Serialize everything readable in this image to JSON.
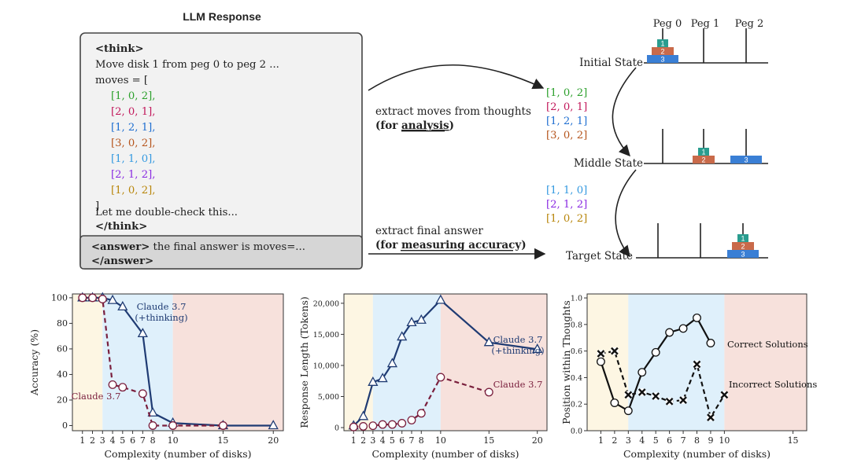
{
  "response_panel": {
    "title": "LLM Response",
    "think_open": "<think>",
    "line1": "Move disk 1 from peg 0 to peg 2 ...",
    "moves_open": "moves = [",
    "moves": [
      "[1, 0, 2],",
      "[2, 0, 1],",
      "[1, 2, 1],",
      "[3, 0, 2],",
      "[1, 1, 0],",
      "[2, 1, 2],",
      "[1, 0, 2],"
    ],
    "moves_close": "]",
    "line_check": "Let me double-check this...",
    "think_close": "</think>",
    "answer_tag": "<answer>",
    "answer_text": " the final answer is moves=...",
    "answer_close": "</answer>"
  },
  "colors": {
    "moves": [
      "#2ca02c",
      "#c2185b",
      "#1f6fd1",
      "#b5541c",
      "#3399e0",
      "#8a2be2",
      "#b8860b"
    ],
    "disk1": "#2a9d8f",
    "disk2": "#c96a4a",
    "disk3": "#3a7fd5",
    "claude_thinking": "#1f3b73",
    "claude": "#7a1f3d",
    "region_easy": "#fdf6e3",
    "region_medium": "#dff0fb",
    "region_hard": "#f7e1dc"
  },
  "arrow_labels": {
    "thoughts_line1": "extract moves  from thoughts",
    "thoughts_line2a": "(for ",
    "thoughts_line2b": "analysis",
    "thoughts_line2c": ")",
    "answer_line1": "extract final answer",
    "answer_line2a": "(for ",
    "answer_line2b": "measuring accuracy",
    "answer_line2c": ")"
  },
  "hanoi": {
    "pegs": [
      "Peg 0",
      "Peg 1",
      "Peg 2"
    ],
    "states": [
      "Initial State",
      "Middle State",
      "Target State"
    ],
    "first_moves": [
      "[1, 0, 2]",
      "[2, 0, 1]",
      "[1, 2, 1]",
      "[3, 0, 2]"
    ],
    "second_moves": [
      "[1, 1, 0]",
      "[2, 1, 2]",
      "[1, 0, 2]"
    ],
    "disk_labels": [
      "1",
      "2",
      "3"
    ]
  },
  "chart_data": [
    {
      "type": "line",
      "xlabel": "Complexity (number of disks)",
      "ylabel": "Accuracy (%)",
      "xlim": [
        0,
        21
      ],
      "ylim": [
        -4,
        103
      ],
      "xticks": [
        1,
        2,
        3,
        4,
        5,
        6,
        7,
        8,
        10,
        15,
        20
      ],
      "yticks": [
        0,
        20,
        40,
        60,
        80,
        100
      ],
      "regions": [
        [
          0,
          3
        ],
        [
          3,
          10
        ],
        [
          10,
          21
        ]
      ],
      "series": [
        {
          "name": "Claude 3.7 (+thinking)",
          "label_lines": [
            "Claude 3.7",
            "(+thinking)"
          ],
          "marker": "triangle",
          "style": "solid",
          "x": [
            1,
            2,
            3,
            4,
            5,
            7,
            8,
            10,
            15,
            20
          ],
          "y": [
            100,
            100,
            100,
            98,
            93,
            72,
            10,
            2,
            0,
            0
          ]
        },
        {
          "name": "Claude 3.7",
          "label_lines": [
            "Claude 3.7"
          ],
          "marker": "circle",
          "style": "dashed",
          "x": [
            1,
            2,
            3,
            4,
            5,
            7,
            8,
            10,
            15
          ],
          "y": [
            100,
            100,
            99,
            32,
            30,
            25,
            0,
            0,
            0
          ]
        }
      ]
    },
    {
      "type": "line",
      "xlabel": "Complexity (number of disks)",
      "ylabel": "Response Length (Tokens)",
      "xlim": [
        0,
        21
      ],
      "ylim": [
        -500,
        21500
      ],
      "xticks": [
        1,
        2,
        3,
        4,
        5,
        6,
        7,
        8,
        10,
        15,
        20
      ],
      "yticks": [
        0,
        5000,
        10000,
        15000,
        20000
      ],
      "ytick_labels": [
        "0",
        "5,000",
        "10,000",
        "15,000",
        "20,000"
      ],
      "regions": [
        [
          0,
          3
        ],
        [
          3,
          10
        ],
        [
          10,
          21
        ]
      ],
      "series": [
        {
          "name": "Claude 3.7 (+thinking)",
          "label_lines": [
            "Claude 3.7",
            "(+thinking)"
          ],
          "marker": "triangle",
          "style": "solid",
          "x": [
            1,
            2,
            3,
            4,
            5,
            6,
            7,
            8,
            10,
            15,
            20
          ],
          "y": [
            300,
            1800,
            7300,
            7900,
            10300,
            14600,
            16900,
            17300,
            20500,
            13700,
            12600
          ]
        },
        {
          "name": "Claude 3.7",
          "label_lines": [
            "Claude 3.7"
          ],
          "marker": "circle",
          "style": "dashed",
          "x": [
            1,
            2,
            3,
            4,
            5,
            6,
            7,
            8,
            10,
            15
          ],
          "y": [
            100,
            200,
            300,
            500,
            500,
            700,
            1200,
            2300,
            8100,
            5700
          ]
        }
      ]
    },
    {
      "type": "line",
      "xlabel": "Complexity (number of disks)",
      "ylabel": "Position within Thoughts",
      "xlim": [
        0,
        16
      ],
      "ylim": [
        0,
        1.03
      ],
      "xticks": [
        1,
        2,
        3,
        4,
        5,
        6,
        7,
        8,
        9,
        10,
        15
      ],
      "yticks": [
        0.0,
        0.2,
        0.4,
        0.6,
        0.8,
        1.0
      ],
      "ytick_labels": [
        "0.0",
        "0.2",
        "0.4",
        "0.6",
        "0.8",
        "1.0"
      ],
      "regions": [
        [
          0,
          3
        ],
        [
          3,
          10
        ],
        [
          10,
          16
        ]
      ],
      "series": [
        {
          "name": "Correct Solutions",
          "label_lines": [
            "Correct Solutions"
          ],
          "marker": "circle",
          "style": "solid",
          "color": "#111111",
          "x": [
            1,
            2,
            3,
            4,
            5,
            6,
            7,
            8,
            9
          ],
          "y": [
            0.52,
            0.21,
            0.15,
            0.44,
            0.59,
            0.74,
            0.77,
            0.85,
            0.66
          ]
        },
        {
          "name": "Incorrect Solutions",
          "label_lines": [
            "Incorrect Solutions"
          ],
          "marker": "x",
          "style": "dashed",
          "color": "#111111",
          "x": [
            1,
            2,
            3,
            4,
            5,
            6,
            7,
            8,
            9,
            10
          ],
          "y": [
            0.58,
            0.6,
            0.27,
            0.29,
            0.26,
            0.22,
            0.23,
            0.5,
            0.1,
            0.27
          ]
        }
      ]
    }
  ]
}
